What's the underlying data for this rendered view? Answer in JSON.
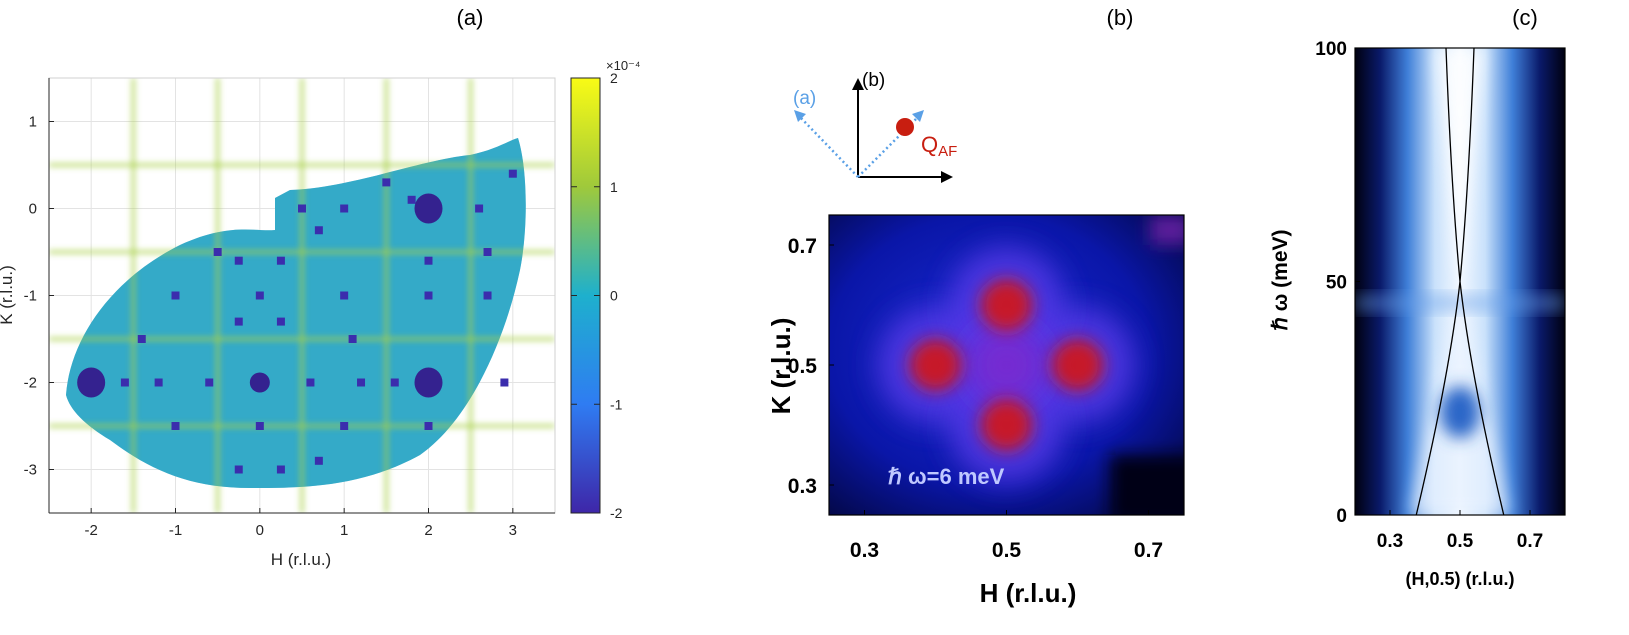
{
  "panel_a": {
    "label": "(a)",
    "xlabel": "H (r.l.u.)",
    "ylabel": "K (r.l.u.)",
    "colorbar_exponent": "×10⁻⁴",
    "colorbar_ticks": [
      "2",
      "1",
      "0",
      "-1",
      "-2"
    ]
  },
  "panel_b": {
    "label": "(b)",
    "xlabel": "H (r.l.u.)",
    "ylabel": "K (r.l.u.)",
    "annotation": "ℏ ω=6 meV",
    "inset": {
      "a_label": "(a)",
      "b_label": "(b)",
      "q_label": "Q",
      "q_sub": "AF"
    }
  },
  "panel_c": {
    "label": "(c)",
    "xlabel": "(H,0.5) (r.l.u.)",
    "ylabel": "ℏ ω  (meV)"
  },
  "chart_data": [
    {
      "type": "heatmap",
      "title": "(a)",
      "xlabel": "H (r.l.u.)",
      "ylabel": "K (r.l.u.)",
      "xlim": [
        -2.5,
        3.5
      ],
      "ylim": [
        -3.5,
        1.5
      ],
      "xticks": [
        -2,
        -1,
        0,
        1,
        2,
        3
      ],
      "yticks": [
        1,
        0,
        -1,
        -2,
        -3
      ],
      "grid": true,
      "colorbar": {
        "range": [
          -2,
          2
        ],
        "exponent": -4,
        "ticks": [
          2,
          1,
          0,
          -1,
          -2
        ]
      },
      "small_spots": [
        [
          -1.6,
          -2.0
        ],
        [
          -1.2,
          -2.0
        ],
        [
          -0.6,
          -2.0
        ],
        [
          0.6,
          -2.0
        ],
        [
          1.2,
          -2.0
        ],
        [
          1.6,
          -2.0
        ],
        [
          -1.0,
          -1.0
        ],
        [
          0.0,
          -1.0
        ],
        [
          1.0,
          -1.0
        ],
        [
          -0.25,
          -0.6
        ],
        [
          0.25,
          -0.6
        ],
        [
          -0.25,
          -1.3
        ],
        [
          0.25,
          -1.3
        ],
        [
          -1.0,
          -2.5
        ],
        [
          0.0,
          -2.5
        ],
        [
          1.0,
          -2.5
        ],
        [
          2.0,
          -2.5
        ],
        [
          2.0,
          -1.0
        ],
        [
          -0.25,
          -3.0
        ],
        [
          0.25,
          -3.0
        ],
        [
          1.0,
          0.0
        ],
        [
          2.0,
          -0.6
        ],
        [
          2.7,
          -1.0
        ],
        [
          2.9,
          -2.0
        ],
        [
          1.1,
          -1.5
        ],
        [
          -1.4,
          -1.5
        ],
        [
          1.5,
          0.3
        ],
        [
          0.7,
          -0.25
        ],
        [
          2.6,
          0.0
        ],
        [
          3.0,
          0.4
        ],
        [
          2.7,
          -0.5
        ],
        [
          0.5,
          0.0
        ],
        [
          -0.5,
          -0.5
        ],
        [
          0.7,
          -2.9
        ],
        [
          1.8,
          0.1
        ]
      ],
      "large_spots": [
        [
          -2.0,
          -2.0
        ],
        [
          0.0,
          -2.0
        ],
        [
          2.0,
          -2.0
        ],
        [
          2.0,
          0.0
        ]
      ]
    },
    {
      "type": "heatmap",
      "title": "(b)",
      "xlabel": "H (r.l.u.)",
      "ylabel": "K (r.l.u.)",
      "xlim": [
        0.25,
        0.75
      ],
      "ylim": [
        0.25,
        0.75
      ],
      "xticks": [
        0.3,
        0.5,
        0.7
      ],
      "yticks": [
        0.7,
        0.5,
        0.3
      ],
      "annotation": "ℏ ω=6 meV",
      "peaks": [
        [
          0.4,
          0.5
        ],
        [
          0.6,
          0.5
        ],
        [
          0.5,
          0.6
        ],
        [
          0.5,
          0.4
        ]
      ]
    },
    {
      "type": "heatmap",
      "title": "(c)",
      "xlabel": "(H,0.5) (r.l.u.)",
      "ylabel": "ℏ ω  (meV)",
      "xlim": [
        0.2,
        0.8
      ],
      "ylim": [
        0,
        100
      ],
      "xticks": [
        0.3,
        0.5,
        0.7
      ],
      "yticks": [
        100,
        50,
        0
      ],
      "dispersion_vertex": [
        0.5,
        50
      ],
      "dispersion_lower_ends": [
        [
          0.375,
          0
        ],
        [
          0.625,
          0
        ]
      ],
      "dispersion_upper_ends": [
        [
          0.46,
          100
        ],
        [
          0.54,
          100
        ]
      ],
      "intensity_blob": [
        0.5,
        22
      ]
    }
  ]
}
